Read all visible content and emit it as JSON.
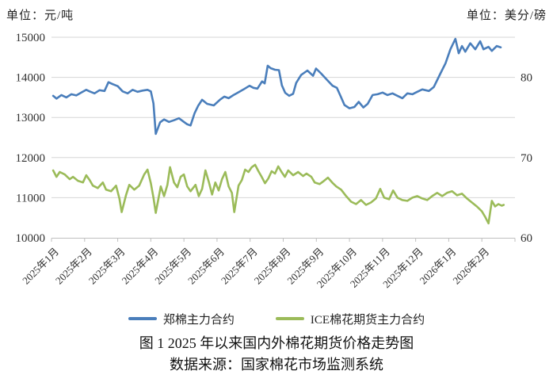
{
  "units": {
    "left": "单位：元/吨",
    "right": "单位：美分/磅"
  },
  "caption": {
    "line1": "图 1  2025 年以来国内外棉花期货价格走势图",
    "line2": "数据来源：国家棉花市场监测系统"
  },
  "colors": {
    "gridline": "#D6D6D6",
    "axis_line": "#BFBFBF",
    "axis_text": "#303030"
  },
  "chart_data": {
    "type": "line",
    "grid": true,
    "legend_position": "bottom",
    "x_axis": {
      "labels": [
        "2025年1月",
        "2025年2月",
        "2025年3月",
        "2025年4月",
        "2025年5月",
        "2025年6月",
        "2025年7月",
        "2025年8月",
        "2025年9月",
        "2025年10月",
        "2025年11月",
        "2025年12月",
        "2026年1月",
        "2026年2月"
      ],
      "intervals": 14
    },
    "y_axis_left": {
      "title": "元/吨",
      "min": 10000,
      "max": 15000,
      "step": 1000,
      "tick_labels": [
        "15000",
        "14000",
        "13000",
        "12000",
        "11000",
        "10000"
      ]
    },
    "y_axis_right": {
      "title": "美分/磅",
      "min": 60,
      "max": 85,
      "tick_labels": [
        {
          "value": 80,
          "text": "80"
        },
        {
          "value": 70,
          "text": "70"
        },
        {
          "value": 60,
          "text": "60"
        }
      ]
    },
    "series": [
      {
        "name": "郑棉主力合约",
        "axis": "left",
        "color": "#4A7EBB",
        "points": [
          [
            0.05,
            13540
          ],
          [
            0.15,
            13470
          ],
          [
            0.3,
            13560
          ],
          [
            0.45,
            13500
          ],
          [
            0.6,
            13580
          ],
          [
            0.75,
            13550
          ],
          [
            0.9,
            13620
          ],
          [
            1.05,
            13690
          ],
          [
            1.15,
            13650
          ],
          [
            1.3,
            13600
          ],
          [
            1.45,
            13680
          ],
          [
            1.6,
            13660
          ],
          [
            1.72,
            13880
          ],
          [
            1.85,
            13830
          ],
          [
            2.0,
            13780
          ],
          [
            2.15,
            13650
          ],
          [
            2.3,
            13600
          ],
          [
            2.45,
            13690
          ],
          [
            2.6,
            13640
          ],
          [
            2.75,
            13670
          ],
          [
            2.9,
            13690
          ],
          [
            3.0,
            13650
          ],
          [
            3.08,
            13350
          ],
          [
            3.15,
            12590
          ],
          [
            3.28,
            12880
          ],
          [
            3.4,
            12950
          ],
          [
            3.55,
            12890
          ],
          [
            3.7,
            12930
          ],
          [
            3.85,
            12980
          ],
          [
            4.0,
            12890
          ],
          [
            4.1,
            12830
          ],
          [
            4.2,
            12800
          ],
          [
            4.32,
            13100
          ],
          [
            4.43,
            13290
          ],
          [
            4.55,
            13440
          ],
          [
            4.7,
            13340
          ],
          [
            4.9,
            13300
          ],
          [
            5.1,
            13450
          ],
          [
            5.22,
            13520
          ],
          [
            5.35,
            13480
          ],
          [
            5.5,
            13560
          ],
          [
            5.62,
            13615
          ],
          [
            5.8,
            13700
          ],
          [
            5.98,
            13790
          ],
          [
            6.1,
            13740
          ],
          [
            6.22,
            13720
          ],
          [
            6.36,
            13900
          ],
          [
            6.44,
            13850
          ],
          [
            6.53,
            14290
          ],
          [
            6.62,
            14230
          ],
          [
            6.75,
            14190
          ],
          [
            6.87,
            14180
          ],
          [
            6.96,
            13800
          ],
          [
            7.06,
            13615
          ],
          [
            7.18,
            13540
          ],
          [
            7.3,
            13590
          ],
          [
            7.39,
            13860
          ],
          [
            7.54,
            14060
          ],
          [
            7.73,
            14170
          ],
          [
            7.9,
            14040
          ],
          [
            7.99,
            14220
          ],
          [
            8.14,
            14100
          ],
          [
            8.33,
            13930
          ],
          [
            8.49,
            13790
          ],
          [
            8.62,
            13740
          ],
          [
            8.75,
            13500
          ],
          [
            8.85,
            13310
          ],
          [
            9.0,
            13230
          ],
          [
            9.15,
            13260
          ],
          [
            9.28,
            13390
          ],
          [
            9.42,
            13250
          ],
          [
            9.55,
            13340
          ],
          [
            9.7,
            13560
          ],
          [
            9.85,
            13580
          ],
          [
            10.0,
            13620
          ],
          [
            10.15,
            13560
          ],
          [
            10.3,
            13600
          ],
          [
            10.45,
            13540
          ],
          [
            10.6,
            13480
          ],
          [
            10.75,
            13600
          ],
          [
            10.9,
            13580
          ],
          [
            11.05,
            13640
          ],
          [
            11.2,
            13700
          ],
          [
            11.4,
            13660
          ],
          [
            11.55,
            13760
          ],
          [
            11.75,
            14100
          ],
          [
            11.9,
            14350
          ],
          [
            12.05,
            14700
          ],
          [
            12.2,
            14960
          ],
          [
            12.3,
            14600
          ],
          [
            12.4,
            14780
          ],
          [
            12.5,
            14640
          ],
          [
            12.65,
            14850
          ],
          [
            12.8,
            14700
          ],
          [
            12.95,
            14900
          ],
          [
            13.05,
            14700
          ],
          [
            13.2,
            14760
          ],
          [
            13.3,
            14660
          ],
          [
            13.45,
            14780
          ],
          [
            13.57,
            14750
          ]
        ]
      },
      {
        "name": "ICE棉花期货主力合约",
        "axis": "right",
        "color": "#9BBB59",
        "points": [
          [
            0.05,
            68.4
          ],
          [
            0.15,
            67.6
          ],
          [
            0.25,
            68.2
          ],
          [
            0.4,
            67.9
          ],
          [
            0.55,
            67.3
          ],
          [
            0.65,
            67.6
          ],
          [
            0.8,
            67.1
          ],
          [
            0.95,
            66.9
          ],
          [
            1.05,
            67.8
          ],
          [
            1.15,
            67.2
          ],
          [
            1.25,
            66.5
          ],
          [
            1.4,
            66.2
          ],
          [
            1.55,
            66.9
          ],
          [
            1.65,
            66.0
          ],
          [
            1.8,
            65.8
          ],
          [
            1.95,
            66.5
          ],
          [
            2.05,
            64.9
          ],
          [
            2.12,
            63.2
          ],
          [
            2.25,
            65.3
          ],
          [
            2.35,
            66.6
          ],
          [
            2.5,
            66.0
          ],
          [
            2.65,
            66.5
          ],
          [
            2.8,
            67.9
          ],
          [
            2.9,
            68.5
          ],
          [
            3.0,
            66.8
          ],
          [
            3.08,
            65.0
          ],
          [
            3.15,
            63.1
          ],
          [
            3.3,
            66.4
          ],
          [
            3.4,
            65.2
          ],
          [
            3.5,
            66.6
          ],
          [
            3.58,
            68.8
          ],
          [
            3.7,
            66.9
          ],
          [
            3.8,
            66.3
          ],
          [
            3.9,
            67.6
          ],
          [
            4.0,
            67.9
          ],
          [
            4.1,
            66.4
          ],
          [
            4.2,
            65.8
          ],
          [
            4.35,
            66.6
          ],
          [
            4.45,
            65.2
          ],
          [
            4.55,
            66.1
          ],
          [
            4.65,
            68.4
          ],
          [
            4.75,
            67.0
          ],
          [
            4.85,
            65.4
          ],
          [
            4.95,
            66.9
          ],
          [
            5.05,
            65.9
          ],
          [
            5.15,
            67.3
          ],
          [
            5.25,
            68.2
          ],
          [
            5.35,
            66.4
          ],
          [
            5.45,
            65.6
          ],
          [
            5.52,
            63.2
          ],
          [
            5.65,
            66.5
          ],
          [
            5.75,
            67.2
          ],
          [
            5.85,
            68.5
          ],
          [
            5.95,
            68.2
          ],
          [
            6.05,
            68.8
          ],
          [
            6.15,
            69.1
          ],
          [
            6.25,
            68.3
          ],
          [
            6.35,
            67.6
          ],
          [
            6.45,
            66.8
          ],
          [
            6.55,
            67.4
          ],
          [
            6.65,
            68.3
          ],
          [
            6.75,
            68.0
          ],
          [
            6.85,
            68.9
          ],
          [
            6.95,
            68.2
          ],
          [
            7.05,
            67.6
          ],
          [
            7.15,
            68.4
          ],
          [
            7.3,
            67.8
          ],
          [
            7.45,
            68.2
          ],
          [
            7.6,
            67.7
          ],
          [
            7.7,
            68.0
          ],
          [
            7.85,
            67.6
          ],
          [
            7.95,
            66.9
          ],
          [
            8.1,
            66.7
          ],
          [
            8.2,
            67.0
          ],
          [
            8.35,
            67.5
          ],
          [
            8.5,
            66.8
          ],
          [
            8.6,
            66.4
          ],
          [
            8.75,
            66.0
          ],
          [
            8.9,
            65.2
          ],
          [
            9.05,
            64.5
          ],
          [
            9.2,
            64.2
          ],
          [
            9.35,
            64.7
          ],
          [
            9.5,
            64.1
          ],
          [
            9.65,
            64.4
          ],
          [
            9.8,
            64.9
          ],
          [
            9.93,
            66.1
          ],
          [
            10.05,
            65.0
          ],
          [
            10.2,
            64.8
          ],
          [
            10.32,
            65.9
          ],
          [
            10.45,
            65.0
          ],
          [
            10.6,
            64.7
          ],
          [
            10.75,
            64.6
          ],
          [
            10.9,
            65.0
          ],
          [
            11.05,
            65.2
          ],
          [
            11.2,
            64.9
          ],
          [
            11.35,
            64.7
          ],
          [
            11.5,
            65.2
          ],
          [
            11.65,
            65.6
          ],
          [
            11.8,
            65.2
          ],
          [
            11.95,
            65.6
          ],
          [
            12.1,
            65.8
          ],
          [
            12.25,
            65.3
          ],
          [
            12.4,
            65.5
          ],
          [
            12.55,
            64.9
          ],
          [
            12.7,
            64.4
          ],
          [
            12.85,
            63.9
          ],
          [
            13.0,
            63.3
          ],
          [
            13.1,
            62.6
          ],
          [
            13.2,
            61.8
          ],
          [
            13.3,
            64.6
          ],
          [
            13.4,
            63.9
          ],
          [
            13.5,
            64.2
          ],
          [
            13.6,
            64.0
          ],
          [
            13.66,
            64.1
          ]
        ]
      }
    ]
  }
}
